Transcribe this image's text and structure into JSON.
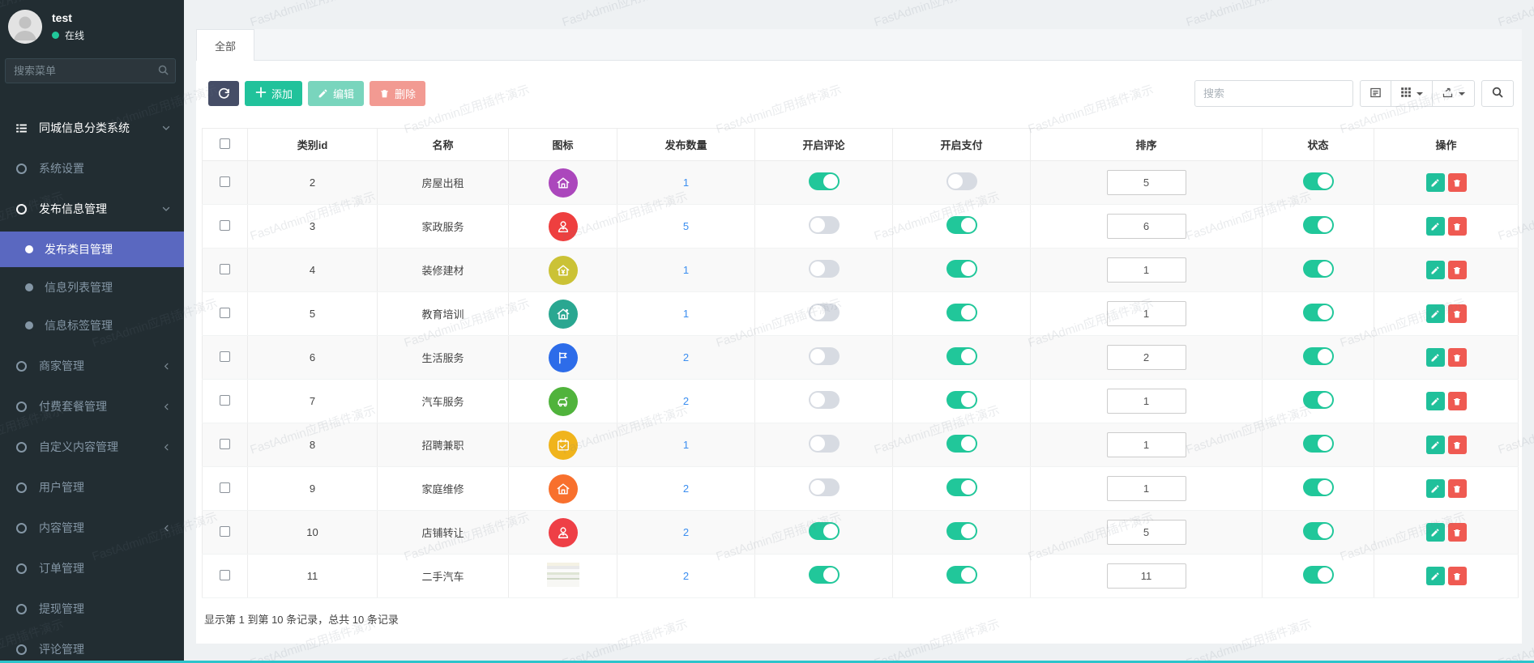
{
  "watermark": {
    "text": "FastAdmin应用插件演示"
  },
  "colors": {
    "sidebar_bg": "#222d32",
    "active_menu": "#5a68c0",
    "success": "#21c79a",
    "primary_dark": "#454d66",
    "danger": "#ef5a52",
    "link": "#3b8ef0",
    "bottom_accent": "#2cc4cb"
  },
  "sidebar": {
    "user": {
      "name": "test",
      "status": "在线"
    },
    "search_placeholder": "搜索菜单",
    "menu": [
      {
        "label": "同城信息分类系统",
        "type": "section",
        "icon": "list-icon",
        "chevron": "down"
      },
      {
        "label": "系统设置",
        "type": "group"
      },
      {
        "label": "发布信息管理",
        "type": "group",
        "open": true,
        "chevron": "down"
      },
      {
        "label": "发布类目管理",
        "type": "sub",
        "active": true
      },
      {
        "label": "信息列表管理",
        "type": "sub"
      },
      {
        "label": "信息标签管理",
        "type": "sub"
      },
      {
        "label": "商家管理",
        "type": "group",
        "chevron": "left"
      },
      {
        "label": "付费套餐管理",
        "type": "group",
        "chevron": "left"
      },
      {
        "label": "自定义内容管理",
        "type": "group",
        "chevron": "left"
      },
      {
        "label": "用户管理",
        "type": "group"
      },
      {
        "label": "内容管理",
        "type": "group",
        "chevron": "left"
      },
      {
        "label": "订单管理",
        "type": "group"
      },
      {
        "label": "提现管理",
        "type": "group"
      },
      {
        "label": "评论管理",
        "type": "group"
      }
    ]
  },
  "tabs": [
    {
      "label": "全部",
      "active": true
    }
  ],
  "toolbar": {
    "refresh": {
      "icon": "refresh-icon"
    },
    "add": {
      "label": "添加",
      "icon": "plus-icon"
    },
    "edit": {
      "label": "编辑",
      "icon": "pencil-icon",
      "disabled": true
    },
    "delete": {
      "label": "删除",
      "icon": "trash-icon",
      "disabled": true
    },
    "search_placeholder": "搜索",
    "view_buttons": [
      {
        "icon": "detail-view-icon",
        "caret": false
      },
      {
        "icon": "columns-grid-icon",
        "caret": true
      },
      {
        "icon": "export-icon",
        "caret": true
      }
    ],
    "search_button": {
      "icon": "magnifier-icon"
    }
  },
  "table": {
    "columns": [
      "类别id",
      "名称",
      "图标",
      "发布数量",
      "开启评论",
      "开启支付",
      "排序",
      "状态",
      "操作"
    ],
    "rows": [
      {
        "id": "2",
        "name": "房屋出租",
        "icon": "house-icon",
        "icon_color": "#ab47bc",
        "count": "1",
        "comment_on": true,
        "pay_on": false,
        "sort": "5",
        "status_on": true
      },
      {
        "id": "3",
        "name": "家政服务",
        "icon": "person-icon",
        "icon_color": "#ee3f3f",
        "count": "5",
        "comment_on": false,
        "pay_on": true,
        "sort": "6",
        "status_on": true
      },
      {
        "id": "4",
        "name": "装修建材",
        "icon": "house-yen-icon",
        "icon_color": "#cbc236",
        "count": "1",
        "comment_on": false,
        "pay_on": true,
        "sort": "1",
        "status_on": true
      },
      {
        "id": "5",
        "name": "教育培训",
        "icon": "school-icon",
        "icon_color": "#2aa791",
        "count": "1",
        "comment_on": false,
        "pay_on": true,
        "sort": "1",
        "status_on": true
      },
      {
        "id": "6",
        "name": "生活服务",
        "icon": "flag-icon",
        "icon_color": "#2d6ce9",
        "count": "2",
        "comment_on": false,
        "pay_on": true,
        "sort": "2",
        "status_on": true
      },
      {
        "id": "7",
        "name": "汽车服务",
        "icon": "car-icon",
        "icon_color": "#50b33c",
        "count": "2",
        "comment_on": false,
        "pay_on": true,
        "sort": "1",
        "status_on": true
      },
      {
        "id": "8",
        "name": "招聘兼职",
        "icon": "calendar-icon",
        "icon_color": "#f0b41c",
        "count": "1",
        "comment_on": false,
        "pay_on": true,
        "sort": "1",
        "status_on": true
      },
      {
        "id": "9",
        "name": "家庭维修",
        "icon": "house-icon",
        "icon_color": "#f8702d",
        "count": "2",
        "comment_on": false,
        "pay_on": true,
        "sort": "1",
        "status_on": true
      },
      {
        "id": "10",
        "name": "店铺转让",
        "icon": "person-icon",
        "icon_color": "#ee3f46",
        "count": "2",
        "comment_on": true,
        "pay_on": true,
        "sort": "5",
        "status_on": true
      },
      {
        "id": "11",
        "name": "二手汽车",
        "icon": "photo-thumbnail",
        "icon_color": "",
        "count": "2",
        "comment_on": true,
        "pay_on": true,
        "sort": "11",
        "status_on": true
      }
    ]
  },
  "footer": {
    "summary": "显示第 1 到第 10 条记录，总共 10 条记录"
  }
}
